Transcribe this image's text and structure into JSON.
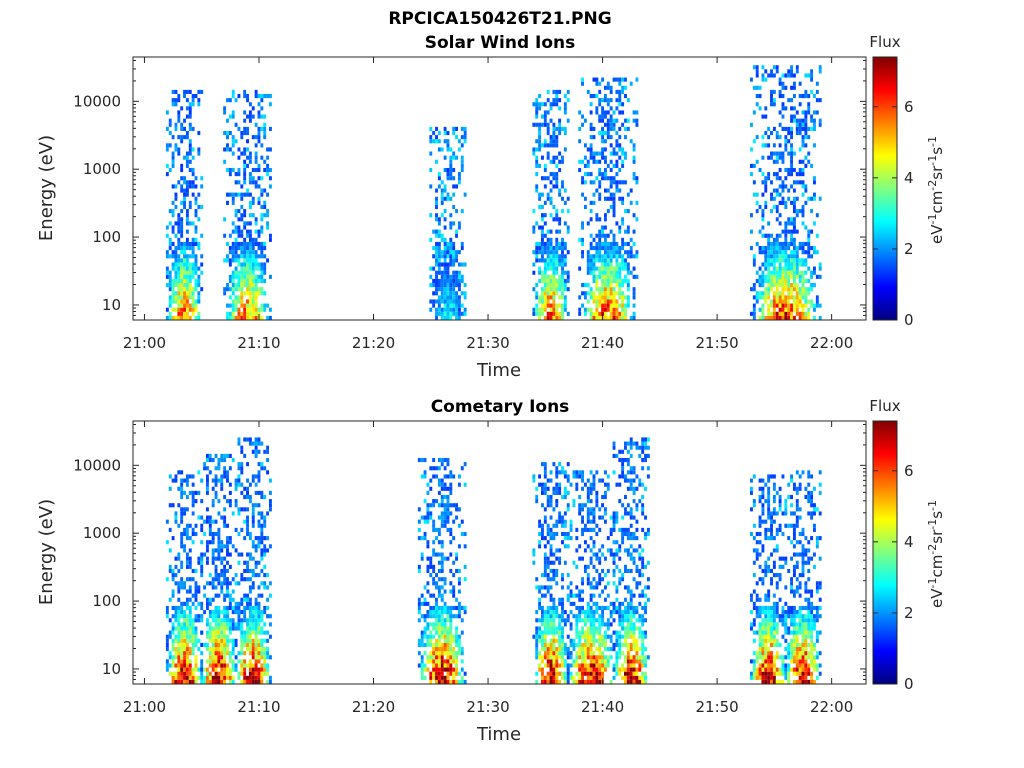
{
  "figure": {
    "title": "RPCICA150426T21.PNG"
  },
  "colormap": [
    "#00007f",
    "#0000ff",
    "#007fff",
    "#00ffff",
    "#7fff7f",
    "#ffff00",
    "#ff7f00",
    "#ff0000",
    "#7f0000"
  ],
  "chart_data": [
    {
      "type": "heatmap",
      "title": "Solar Wind Ions",
      "xlabel": "Time",
      "ylabel": "Energy (eV)",
      "yscale": "log",
      "ylim": [
        6,
        45000
      ],
      "xlim_minutes_after_21_00": [
        -1,
        63
      ],
      "xticks": [
        "21:00",
        "21:10",
        "21:20",
        "21:30",
        "21:40",
        "21:50",
        "22:00"
      ],
      "yticks": [
        "10",
        "100",
        "1000",
        "10000"
      ],
      "colorbar": {
        "label": "Flux",
        "unit": "eV-1cm-2sr-1s-1",
        "range": [
          0,
          7.4
        ],
        "ticks": [
          "0",
          "2",
          "4",
          "6"
        ]
      },
      "bursts": [
        {
          "start": "21:02",
          "end": "21:05",
          "peak_flux": 6.0,
          "max_energy": 15000
        },
        {
          "start": "21:07",
          "end": "21:11",
          "peak_flux": 5.8,
          "max_energy": 15000
        },
        {
          "start": "21:25",
          "end": "21:28",
          "peak_flux": 2.8,
          "max_energy": 4000
        },
        {
          "start": "21:34",
          "end": "21:37",
          "peak_flux": 6.0,
          "max_energy": 14000
        },
        {
          "start": "21:38",
          "end": "21:43",
          "peak_flux": 6.2,
          "max_energy": 22000
        },
        {
          "start": "21:53",
          "end": "21:59",
          "peak_flux": 6.4,
          "max_energy": 35000
        }
      ]
    },
    {
      "type": "heatmap",
      "title": "Cometary Ions",
      "xlabel": "Time",
      "ylabel": "Energy (eV)",
      "yscale": "log",
      "ylim": [
        6,
        45000
      ],
      "xlim_minutes_after_21_00": [
        -1,
        63
      ],
      "xticks": [
        "21:00",
        "21:10",
        "21:20",
        "21:30",
        "21:40",
        "21:50",
        "22:00"
      ],
      "yticks": [
        "10",
        "100",
        "1000",
        "10000"
      ],
      "colorbar": {
        "label": "Flux",
        "unit": "eV-1cm-2sr-1s-1",
        "range": [
          0,
          7.4
        ],
        "ticks": [
          "0",
          "2",
          "4",
          "6"
        ]
      },
      "bursts": [
        {
          "start": "21:02",
          "end": "21:05",
          "peak_flux": 7.2,
          "max_energy": 8000
        },
        {
          "start": "21:05",
          "end": "21:08",
          "peak_flux": 7.3,
          "max_energy": 15000
        },
        {
          "start": "21:08",
          "end": "21:11",
          "peak_flux": 7.2,
          "max_energy": 25000
        },
        {
          "start": "21:24",
          "end": "21:28",
          "peak_flux": 7.4,
          "max_energy": 13000
        },
        {
          "start": "21:34",
          "end": "21:37",
          "peak_flux": 7.2,
          "max_energy": 11000
        },
        {
          "start": "21:37",
          "end": "21:41",
          "peak_flux": 7.3,
          "max_energy": 8000
        },
        {
          "start": "21:41",
          "end": "21:44",
          "peak_flux": 7.2,
          "max_energy": 25000
        },
        {
          "start": "21:53",
          "end": "21:56",
          "peak_flux": 7.2,
          "max_energy": 7000
        },
        {
          "start": "21:56",
          "end": "21:59",
          "peak_flux": 7.2,
          "max_energy": 8000
        }
      ]
    }
  ]
}
